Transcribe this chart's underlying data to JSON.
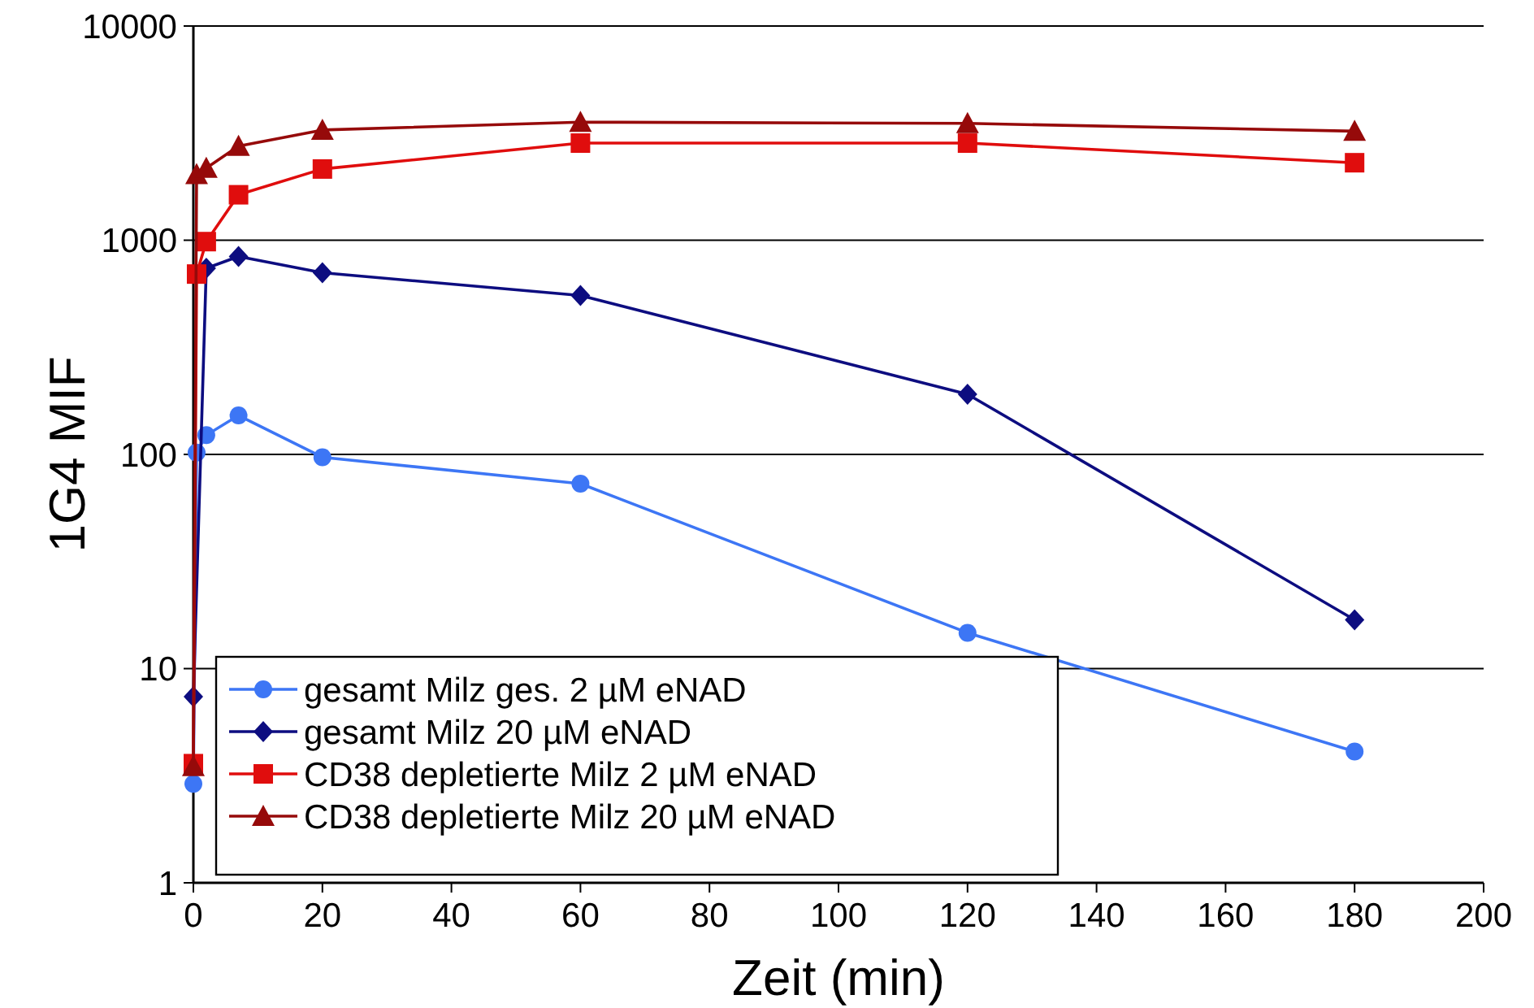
{
  "chart_data": {
    "type": "line",
    "xlabel": "Zeit (min)",
    "ylabel": "1G4 MIF",
    "log": "y",
    "grid": "y",
    "legend": "bottom left",
    "xlim": [
      0,
      200
    ],
    "xticks": [
      0,
      20,
      40,
      60,
      80,
      100,
      120,
      140,
      160,
      180,
      200
    ],
    "ylim": [
      1,
      10000
    ],
    "yticks": [
      1,
      10,
      100,
      1000,
      10000
    ],
    "x": [
      0,
      0.5,
      2,
      7,
      20,
      60,
      120,
      180
    ],
    "series": [
      {
        "name": "gesamt Milz ges. 2 µM eNAD",
        "color": "#3d76f5",
        "marker": "circle",
        "values": [
          2.9,
          102,
          123,
          152,
          97,
          73,
          14.7,
          4.1
        ]
      },
      {
        "name": "gesamt Milz 20 µM eNAD",
        "color": "#0d0d80",
        "marker": "diamond",
        "values": [
          7.4,
          null,
          740,
          840,
          705,
          552,
          191,
          16.9
        ]
      },
      {
        "name": "CD38 depletierte Milz 2 µM eNAD",
        "color": "#e00d0d",
        "marker": "square",
        "values": [
          3.6,
          695,
          985,
          1630,
          2150,
          2840,
          2840,
          2300
        ]
      },
      {
        "name": "CD38 depletierte Milz 20 µM eNAD",
        "color": "#960a0a",
        "marker": "triangle",
        "values": [
          3.5,
          2030,
          2170,
          2750,
          3270,
          3560,
          3510,
          3230
        ]
      }
    ]
  }
}
